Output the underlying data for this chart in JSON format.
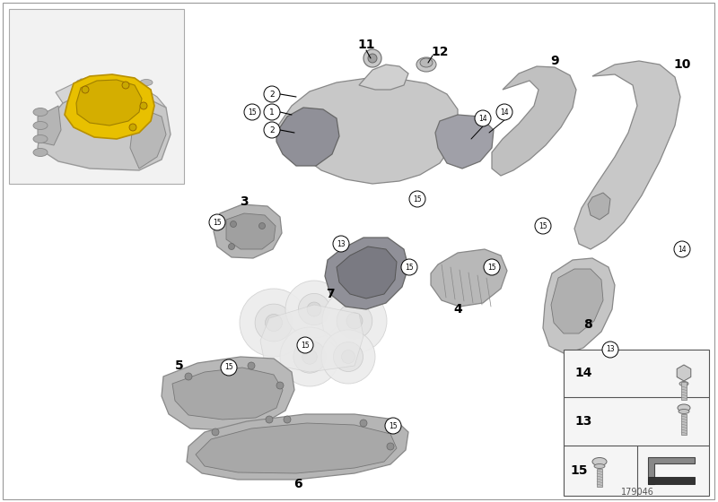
{
  "bg_color": "#ffffff",
  "catalog_number": "179046",
  "border_color": "#aaaaaa",
  "parts_gray": "#b8b8b8",
  "parts_dark": "#8a8a90",
  "parts_medium": "#a8a8a8",
  "inset_bg": "#f0f0f0",
  "legend_bg": "#f5f5f5"
}
